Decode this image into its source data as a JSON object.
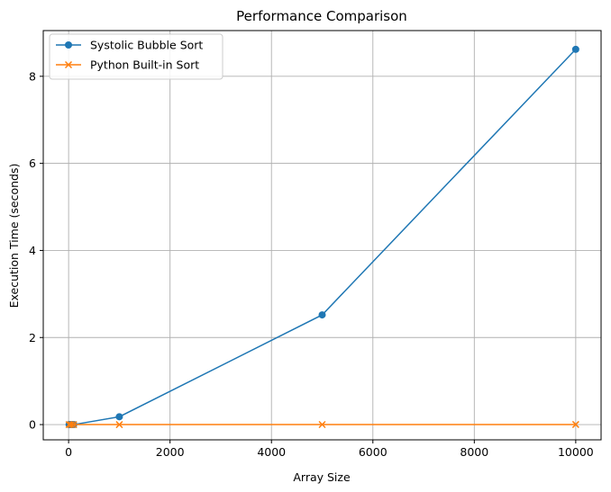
{
  "chart_data": {
    "type": "line",
    "title": "Performance Comparison",
    "xlabel": "Array Size",
    "ylabel": "Execution Time (seconds)",
    "xlim": [
      -500,
      10500
    ],
    "ylim": [
      -0.35,
      9.05
    ],
    "xticks": [
      0,
      2000,
      4000,
      6000,
      8000,
      10000
    ],
    "xtick_labels": [
      "0",
      "2000",
      "4000",
      "6000",
      "8000",
      "10000"
    ],
    "yticks": [
      0,
      2,
      4,
      6,
      8
    ],
    "ytick_labels": [
      "0",
      "2",
      "4",
      "6",
      "8"
    ],
    "grid": true,
    "legend_position": "top-left",
    "series": [
      {
        "name": "Systolic Bubble Sort",
        "color": "#1f77b4",
        "marker": "circle",
        "x": [
          10,
          50,
          100,
          1000,
          5000,
          10000
        ],
        "y": [
          0.0,
          0.0,
          0.0,
          0.18,
          2.52,
          8.62
        ]
      },
      {
        "name": "Python Built-in Sort",
        "color": "#ff7f0e",
        "marker": "x",
        "x": [
          10,
          50,
          100,
          1000,
          5000,
          10000
        ],
        "y": [
          0.0,
          0.0,
          0.0,
          0.0,
          0.001,
          0.002
        ]
      }
    ]
  }
}
